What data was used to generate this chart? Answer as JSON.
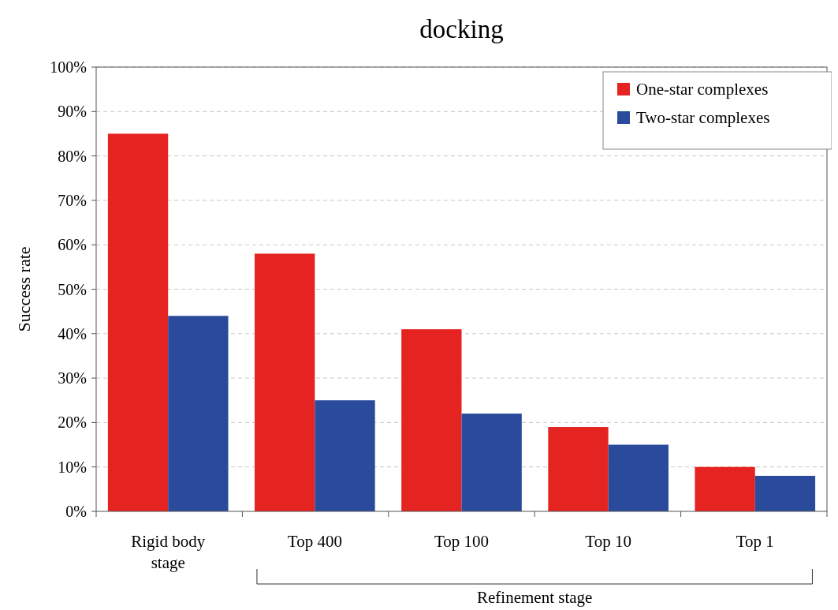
{
  "chart_data": {
    "type": "bar",
    "title": "docking",
    "ylabel": "Success rate",
    "categories": [
      "Rigid body stage",
      "Top 400",
      "Top 100",
      "Top 10",
      "Top 1"
    ],
    "series": [
      {
        "name": "One-star complexes",
        "color": "#e52421",
        "values": [
          85,
          58,
          41,
          19,
          10
        ]
      },
      {
        "name": "Two-star complexes",
        "color": "#2a4b9b",
        "values": [
          44,
          25,
          22,
          15,
          8
        ]
      }
    ],
    "ylim": [
      0,
      100
    ],
    "yticks": [
      {
        "value": 0,
        "label": "0%"
      },
      {
        "value": 10,
        "label": "10%"
      },
      {
        "value": 20,
        "label": "20%"
      },
      {
        "value": 30,
        "label": "30%"
      },
      {
        "value": 40,
        "label": "40%"
      },
      {
        "value": 50,
        "label": "50%"
      },
      {
        "value": 60,
        "label": "60%"
      },
      {
        "value": 70,
        "label": "70%"
      },
      {
        "value": 80,
        "label": "80%"
      },
      {
        "value": 90,
        "label": "90%"
      },
      {
        "value": 100,
        "label": "100%"
      }
    ],
    "grid": "y",
    "legend": "top right",
    "annotations": [
      "Refinement stage"
    ]
  }
}
